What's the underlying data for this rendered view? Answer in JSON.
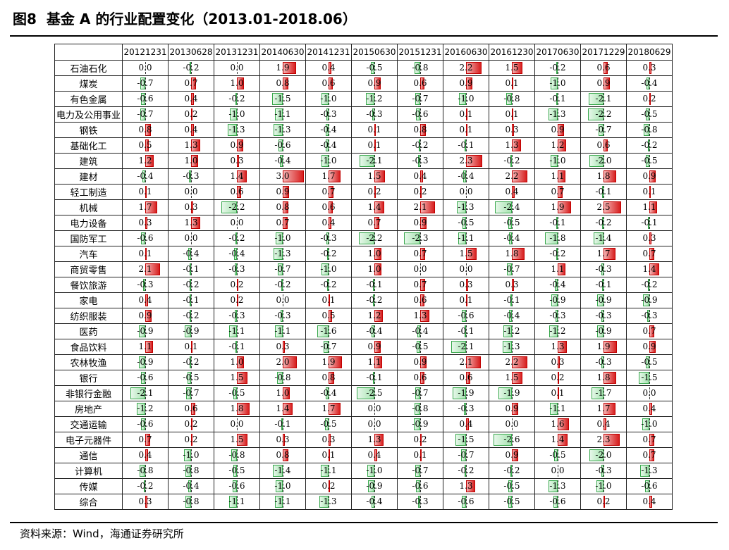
{
  "header": {
    "figure_label": "图8",
    "title": "基金 A 的行业配置变化（2013.01-2018.06）"
  },
  "footer": {
    "source": "资料来源：Wind，海通证券研究所"
  },
  "colors": {
    "positive": "#c00000",
    "negative": "#38a84c"
  },
  "table": {
    "columns": [
      "20121231",
      "20130628",
      "20131231",
      "20140630",
      "20141231",
      "20150630",
      "20151231",
      "20160630",
      "20161230",
      "20170630",
      "20171229",
      "20180629"
    ],
    "max_abs": 3.0,
    "rows": [
      {
        "name": "石油石化",
        "values": [
          0.0,
          -0.2,
          0.0,
          1.9,
          0.4,
          -0.5,
          -0.8,
          2.2,
          1.5,
          -0.2,
          0.6,
          0.3
        ]
      },
      {
        "name": "煤炭",
        "values": [
          -0.7,
          0.7,
          1.0,
          0.8,
          0.6,
          0.9,
          0.6,
          0.9,
          0.1,
          -1.0,
          0.9,
          -0.4
        ]
      },
      {
        "name": "有色金属",
        "values": [
          -0.6,
          0.4,
          -0.2,
          -1.5,
          -1.0,
          -1.2,
          -0.7,
          -1.0,
          -0.8,
          -0.1,
          -2.1,
          0.2
        ]
      },
      {
        "name": "电力及公用事业",
        "values": [
          -0.7,
          0.2,
          -1.0,
          -1.1,
          -0.3,
          -0.3,
          -0.6,
          0.1,
          0.1,
          -1.3,
          -2.2,
          -0.5
        ]
      },
      {
        "name": "钢铁",
        "values": [
          0.8,
          0.4,
          -1.3,
          -1.3,
          -0.4,
          0.1,
          0.8,
          0.1,
          0.3,
          0.9,
          -0.7,
          -0.8
        ]
      },
      {
        "name": "基础化工",
        "values": [
          0.5,
          1.3,
          0.9,
          -0.6,
          -0.4,
          0.1,
          -0.2,
          -0.1,
          1.3,
          1.2,
          0.6,
          -0.2
        ]
      },
      {
        "name": "建筑",
        "values": [
          1.2,
          1.0,
          0.3,
          -0.4,
          -1.0,
          -2.1,
          -0.3,
          2.3,
          -0.2,
          -1.0,
          -2.0,
          -0.5
        ]
      },
      {
        "name": "建材",
        "values": [
          -0.4,
          -0.3,
          1.4,
          3.0,
          1.7,
          1.5,
          0.4,
          -0.4,
          2.2,
          1.1,
          1.8,
          0.9
        ]
      },
      {
        "name": "轻工制造",
        "values": [
          0.1,
          0.0,
          0.6,
          0.9,
          0.7,
          0.2,
          0.2,
          0.0,
          0.4,
          0.7,
          -0.1,
          0.1
        ]
      },
      {
        "name": "机械",
        "values": [
          1.7,
          0.3,
          -2.2,
          0.8,
          0.6,
          1.4,
          2.1,
          -1.3,
          -2.4,
          1.9,
          2.5,
          1.1
        ]
      },
      {
        "name": "电力设备",
        "values": [
          0.3,
          1.3,
          0.0,
          0.7,
          0.4,
          0.7,
          0.9,
          -0.5,
          -0.5,
          -0.1,
          -0.2,
          -0.1
        ]
      },
      {
        "name": "国防军工",
        "values": [
          -0.6,
          0.0,
          -0.2,
          -1.0,
          -0.3,
          -2.2,
          -2.3,
          -1.1,
          -0.4,
          -1.8,
          -1.4,
          0.3
        ]
      },
      {
        "name": "汽车",
        "values": [
          0.1,
          -0.4,
          -0.4,
          -1.3,
          -0.2,
          1.0,
          0.7,
          1.5,
          1.8,
          -0.2,
          1.7,
          0.7
        ]
      },
      {
        "name": "商贸零售",
        "values": [
          2.1,
          -0.1,
          -0.3,
          -0.7,
          -1.0,
          1.0,
          0.0,
          0.0,
          -0.7,
          1.1,
          -0.3,
          1.4
        ]
      },
      {
        "name": "餐饮旅游",
        "values": [
          -0.3,
          -0.2,
          0.2,
          -0.2,
          -0.2,
          -0.1,
          0.7,
          0.3,
          0.3,
          -0.4,
          -0.1,
          -0.2
        ]
      },
      {
        "name": "家电",
        "values": [
          0.4,
          -0.1,
          0.2,
          0.0,
          0.1,
          -0.2,
          0.6,
          0.1,
          -0.1,
          -0.9,
          -0.9,
          -0.9
        ]
      },
      {
        "name": "纺织服装",
        "values": [
          0.9,
          -0.2,
          -0.3,
          -0.3,
          0.5,
          1.2,
          1.3,
          -0.6,
          -0.4,
          -0.3,
          -0.3,
          -0.3
        ]
      },
      {
        "name": "医药",
        "values": [
          -0.9,
          -0.9,
          -1.1,
          -1.1,
          -1.6,
          -0.4,
          -0.4,
          -0.1,
          -1.2,
          -1.2,
          -0.9,
          0.7
        ]
      },
      {
        "name": "食品饮料",
        "values": [
          1.1,
          0.1,
          -0.1,
          0.3,
          -0.7,
          0.9,
          -0.5,
          -2.1,
          -1.3,
          1.3,
          1.9,
          0.9
        ]
      },
      {
        "name": "农林牧渔",
        "values": [
          -0.9,
          -0.2,
          1.0,
          2.0,
          1.9,
          1.1,
          0.9,
          2.1,
          2.2,
          0.3,
          -0.3,
          -0.5
        ]
      },
      {
        "name": "银行",
        "values": [
          -0.6,
          -0.5,
          1.5,
          -0.8,
          0.8,
          -0.1,
          0.6,
          0.6,
          1.5,
          0.2,
          1.8,
          -1.5
        ]
      },
      {
        "name": "非银行金融",
        "values": [
          -2.1,
          -0.7,
          -0.5,
          1.0,
          -0.4,
          -2.5,
          -0.7,
          -1.9,
          -1.9,
          0.1,
          -1.7,
          0.0
        ]
      },
      {
        "name": "房地产",
        "values": [
          -1.2,
          0.6,
          1.8,
          1.4,
          1.7,
          0.0,
          -0.8,
          -0.3,
          0.9,
          -1.1,
          1.7,
          0.4
        ]
      },
      {
        "name": "交通运输",
        "values": [
          -0.6,
          0.2,
          0.0,
          -0.1,
          -0.5,
          0.0,
          -0.9,
          0.4,
          0.0,
          1.6,
          0.4,
          -1.0
        ]
      },
      {
        "name": "电子元器件",
        "values": [
          0.7,
          0.2,
          1.5,
          0.3,
          0.3,
          1.3,
          0.2,
          -1.5,
          -2.6,
          1.4,
          2.3,
          0.7
        ]
      },
      {
        "name": "通信",
        "values": [
          0.4,
          -1.0,
          -0.8,
          0.8,
          0.1,
          0.4,
          0.1,
          -0.7,
          0.9,
          -0.5,
          -2.0,
          0.7
        ]
      },
      {
        "name": "计算机",
        "values": [
          -0.8,
          -0.8,
          -0.5,
          -1.4,
          -1.1,
          -1.0,
          -0.7,
          -0.2,
          -0.2,
          0.0,
          -0.3,
          -1.3
        ]
      },
      {
        "name": "传媒",
        "values": [
          -0.2,
          -0.4,
          -0.6,
          -1.0,
          0.2,
          -0.9,
          -0.6,
          1.3,
          -0.5,
          -1.3,
          -1.0,
          -0.6
        ]
      },
      {
        "name": "综合",
        "values": [
          0.3,
          -0.8,
          -1.1,
          -1.1,
          -1.3,
          -0.4,
          -0.3,
          -0.6,
          -0.5,
          -0.6,
          0.2,
          0.4
        ]
      }
    ]
  }
}
